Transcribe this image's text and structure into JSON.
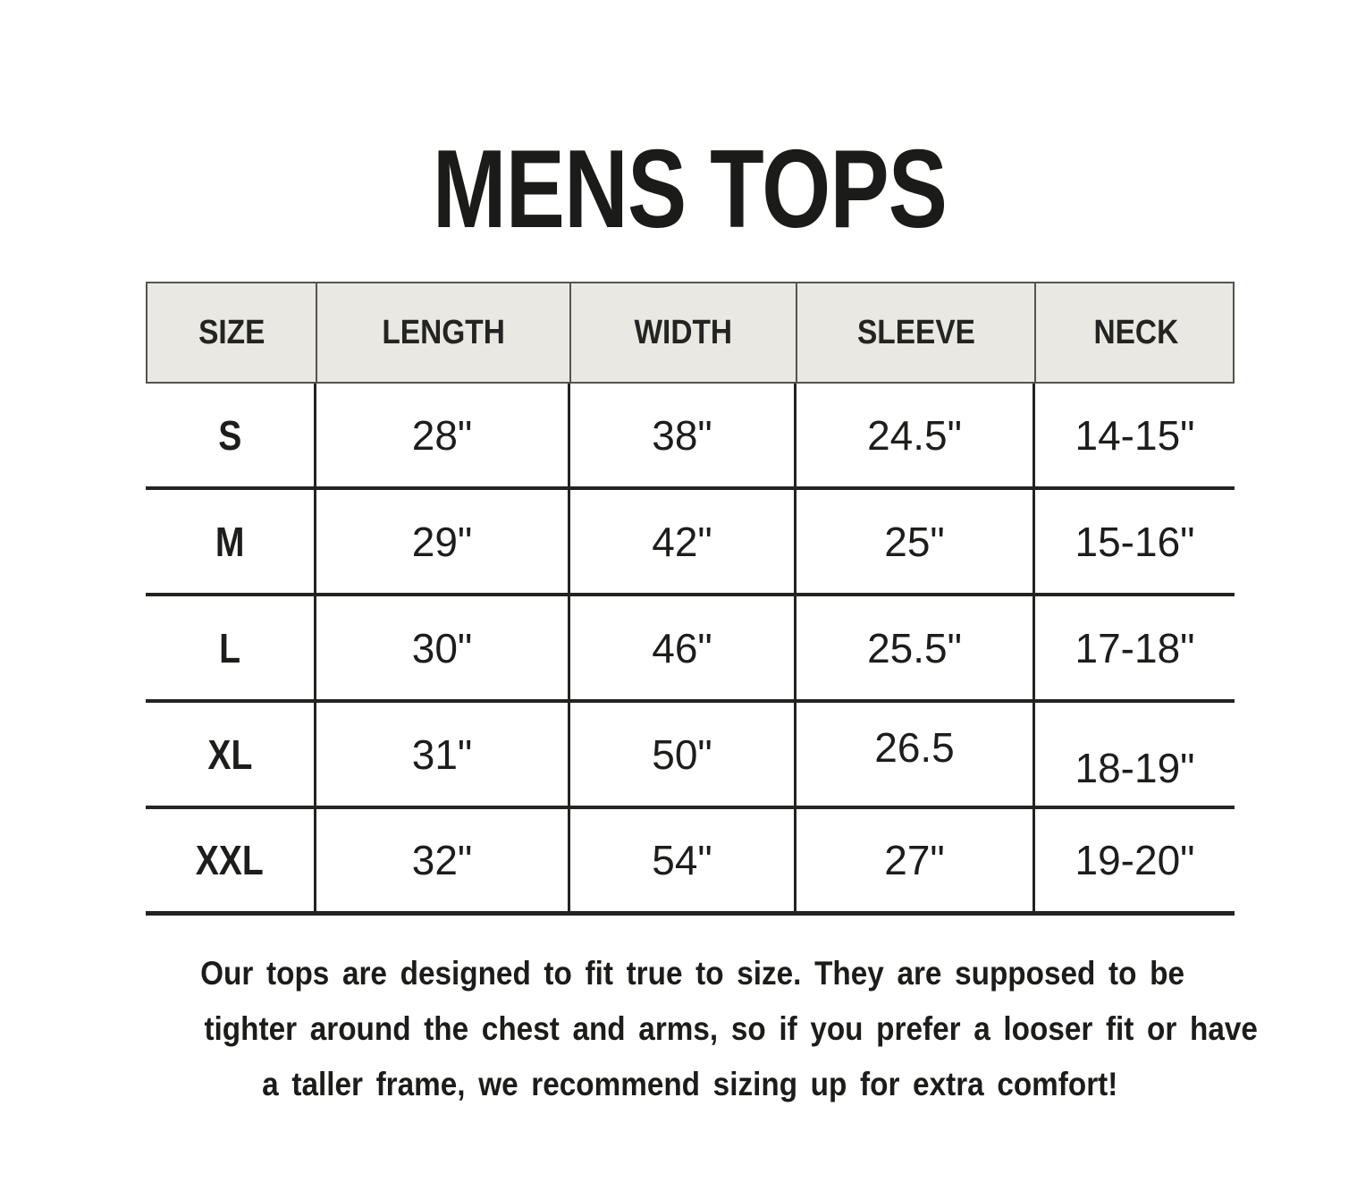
{
  "title": "MENS TOPS",
  "table": {
    "headers": [
      "SIZE",
      "LENGTH",
      "WIDTH",
      "SLEEVE",
      "NECK"
    ],
    "rows": [
      {
        "size": "S",
        "length": "28\"",
        "width": "38\"",
        "sleeve": "24.5\"",
        "neck": "14-15\""
      },
      {
        "size": "M",
        "length": "29\"",
        "width": "42\"",
        "sleeve": "25\"",
        "neck": "15-16\""
      },
      {
        "size": "L",
        "length": "30\"",
        "width": "46\"",
        "sleeve": "25.5\"",
        "neck": "17-18\""
      },
      {
        "size": "XL",
        "length": "31\"",
        "width": "50\"",
        "sleeve": "26.5",
        "neck": "18-19\""
      },
      {
        "size": "XXL",
        "length": "32\"",
        "width": "54\"",
        "sleeve": "27\"",
        "neck": "19-20\""
      }
    ]
  },
  "footer": {
    "lines": [
      "Our tops are designed to fit true to size. They are supposed to be",
      "tighter around the chest and arms, so if you prefer a looser fit or have",
      "a taller frame, we recommend sizing up for extra comfort!"
    ]
  },
  "colors": {
    "page_bg": "#ffffff",
    "header_fill": "#e9e8e2",
    "header_border": "#55534d",
    "line": "#232321",
    "text": "#1d1d1b"
  }
}
